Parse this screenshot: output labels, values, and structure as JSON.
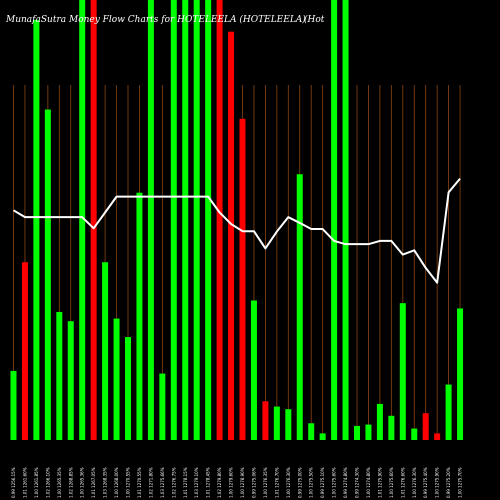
{
  "chart_data": {
    "type": "bar",
    "title": "MunafaSutra  Money Flow  Charts for HOTELEELA  (HOTELEELA)",
    "title_right": "(Hot",
    "bar_max": 100,
    "line_max": 100,
    "colors": {
      "up": "#00ff00",
      "down": "#ff0000",
      "line": "#ffffff",
      "grid": "#8b4513",
      "background": "#000000"
    },
    "categories": [
      "0.99 1256.15%",
      "1.01 1261.60%",
      "1.00 1261.85%",
      "1.02 1266.10%",
      "1.00 1265.35%",
      "1.02 1268.85%",
      "1.00 1265.36%",
      "1.01 1267.05%",
      "1.03 1268.35%",
      "1.00 1268.00%",
      "1.00 1270.55%",
      "1.01 1270.55%",
      "1.02 1271.80%",
      "1.03 1275.66%",
      "1.02 1276.75%",
      "1.01 1278.15%",
      "1.03 1279.10%",
      "1.01 1278.45%",
      "1.02 1279.80%",
      "1.00 1279.60%",
      "1.00 1278.90%",
      "0.99 1275.06%",
      "1.00 1276.35%",
      "1.01 1276.70%",
      "1.00 1276.30%",
      "0.99 1275.00%",
      "1.00 1275.50%",
      "0.99 1275.10%",
      "1.00 1275.60%",
      "0.99 1274.80%",
      "0.99 1274.30%",
      "1.00 1274.80%",
      "1.01 1275.90%",
      "1.00 1275.60%",
      "1.01 1276.60%",
      "1.00 1276.30%",
      "0.99 1275.40%",
      "1.00 1275.90%",
      "0.99 1275.20%",
      "1.00 1275.70%"
    ],
    "series": [
      {
        "values": [
          15.7,
          40.4,
          95.5,
          75.1,
          29.1,
          27.0,
          100,
          100,
          40.4,
          27.6,
          23.4,
          56.2,
          100,
          15.1,
          100,
          100,
          100,
          100,
          100,
          92.8,
          73.0,
          31.7,
          8.8,
          7.6,
          7.0,
          60.4,
          3.8,
          1.5,
          100,
          100,
          3.2,
          3.5,
          8.2,
          5.5,
          31.1,
          2.6,
          6.1,
          1.5,
          12.6,
          29.9
        ],
        "directions": [
          "up",
          "down",
          "up",
          "up",
          "up",
          "up",
          "up",
          "down",
          "up",
          "up",
          "up",
          "up",
          "up",
          "up",
          "up",
          "up",
          "up",
          "up",
          "down",
          "down",
          "down",
          "up",
          "down",
          "up",
          "up",
          "up",
          "up",
          "up",
          "up",
          "up",
          "up",
          "up",
          "up",
          "up",
          "up",
          "up",
          "down",
          "down",
          "up",
          "up"
        ]
      },
      {
        "values": [
          63.8,
          61.9,
          61.9,
          61.9,
          61.9,
          61.9,
          61.9,
          58.8,
          63.2,
          67.6,
          67.6,
          67.6,
          67.6,
          67.6,
          67.6,
          67.6,
          67.6,
          67.6,
          63.2,
          60.0,
          58.0,
          58.0,
          53.2,
          57.9,
          61.9,
          60.3,
          58.6,
          58.6,
          55.3,
          54.4,
          54.4,
          54.4,
          55.3,
          55.3,
          51.5,
          52.7,
          47.8,
          43.7,
          68.8,
          72.6
        ]
      }
    ]
  }
}
